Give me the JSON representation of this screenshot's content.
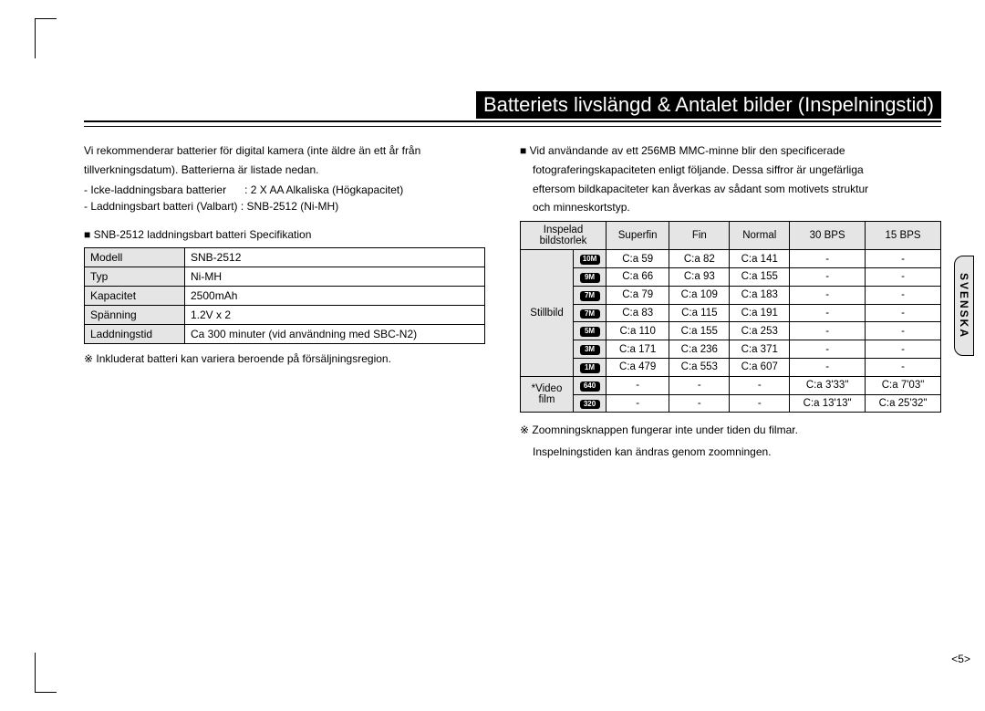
{
  "title": "Batteriets livslängd & Antalet bilder (Inspelningstid)",
  "side_tab": "SVENSKA",
  "page_number": "<5>",
  "left": {
    "intro_line1": "Vi rekommenderar batterier för digital kamera (inte äldre än ett år från",
    "intro_line2": "tillverkningsdatum). Batterierna är listade nedan.",
    "bullet1": "- Icke-laddningsbara batterier",
    "bullet1b": ": 2 X AA Alkaliska (Högkapacitet)",
    "bullet2": "- Laddningsbart batteri (Valbart)  : SNB-2512 (Ni-MH)",
    "spec_heading": "■ SNB-2512 laddningsbart batteri Specifikation",
    "spec_rows": [
      {
        "label": "Modell",
        "value": "SNB-2512"
      },
      {
        "label": "Typ",
        "value": "Ni-MH"
      },
      {
        "label": "Kapacitet",
        "value": "2500mAh"
      },
      {
        "label": "Spänning",
        "value": "1.2V x 2"
      },
      {
        "label": "Laddningstid",
        "value": "Ca 300 minuter (vid användning med SBC-N2)"
      }
    ],
    "footnote": "※ Inkluderat batteri kan variera beroende på försäljningsregion."
  },
  "right": {
    "intro_line1": "■ Vid användande av ett 256MB MMC-minne blir den specificerade",
    "intro_line2": "fotograferingskapaciteten enligt följande. Dessa siffror är ungefärliga",
    "intro_line3": "eftersom bildkapaciteter kan åverkas av sådant som motivets struktur",
    "intro_line4": "och minneskortstyp.",
    "headers": [
      "Inspelad bildstorlek",
      "Superfin",
      "Fin",
      "Normal",
      "30 BPS",
      "15 BPS"
    ],
    "still_label": "Stillbild",
    "video_label_1": "*Video",
    "video_label_2": "film",
    "still_rows": [
      {
        "icon": "10M",
        "cells": [
          "C:a 59",
          "C:a 82",
          "C:a 141",
          "-",
          "-"
        ]
      },
      {
        "icon": "9M",
        "cells": [
          "C:a 66",
          "C:a 93",
          "C:a 155",
          "-",
          "-"
        ]
      },
      {
        "icon": "7M",
        "cells": [
          "C:a 79",
          "C:a 109",
          "C:a 183",
          "-",
          "-"
        ]
      },
      {
        "icon": "7M",
        "cells": [
          "C:a 83",
          "C:a 115",
          "C:a 191",
          "-",
          "-"
        ]
      },
      {
        "icon": "5M",
        "cells": [
          "C:a 110",
          "C:a 155",
          "C:a 253",
          "-",
          "-"
        ]
      },
      {
        "icon": "3M",
        "cells": [
          "C:a 171",
          "C:a 236",
          "C:a 371",
          "-",
          "-"
        ]
      },
      {
        "icon": "1M",
        "cells": [
          "C:a 479",
          "C:a 553",
          "C:a 607",
          "-",
          "-"
        ]
      }
    ],
    "video_rows": [
      {
        "icon": "640",
        "cells": [
          "-",
          "-",
          "-",
          "C:a 3'33\"",
          "C:a 7'03\""
        ]
      },
      {
        "icon": "320",
        "cells": [
          "-",
          "-",
          "-",
          "C:a 13'13\"",
          "C:a 25'32\""
        ]
      }
    ],
    "footnote1": "※ Zoomningsknappen fungerar inte under tiden du filmar.",
    "footnote2": "Inspelningstiden kan ändras genom zoomningen."
  }
}
